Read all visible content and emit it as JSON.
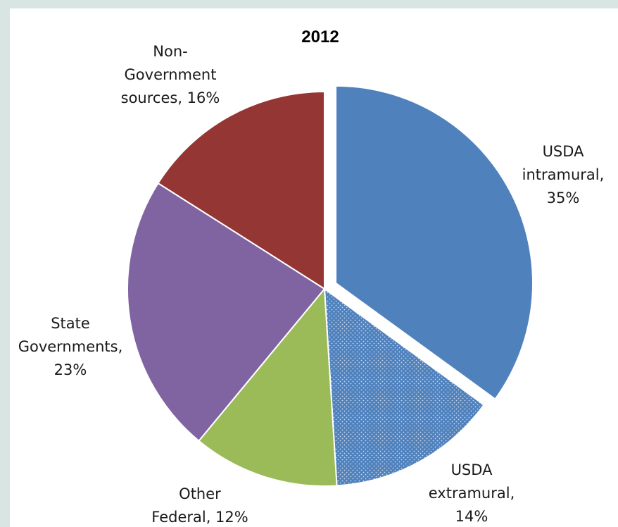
{
  "chart_data": {
    "type": "pie",
    "title": "2012",
    "slices": [
      {
        "label": "USDA intramural",
        "value": 35,
        "color": "#4f81bd",
        "label_lines": [
          "USDA",
          "intramural,",
          "35%"
        ],
        "exploded": true
      },
      {
        "label": "USDA extramural",
        "value": 14,
        "color": "#4f81bd",
        "pattern": "dotted",
        "label_lines": [
          "USDA",
          "extramural,",
          "14%"
        ]
      },
      {
        "label": "Other Federal",
        "value": 12,
        "color": "#9bbb59",
        "label_lines": [
          "Other",
          "Federal, 12%"
        ]
      },
      {
        "label": "State Governments",
        "value": 23,
        "color": "#8064a2",
        "label_lines": [
          "State",
          "Governments,",
          "23%"
        ]
      },
      {
        "label": "Non-Government sources",
        "value": 16,
        "color": "#943634",
        "label_lines": [
          "Non-",
          "Government",
          "sources, 16%"
        ]
      }
    ]
  }
}
